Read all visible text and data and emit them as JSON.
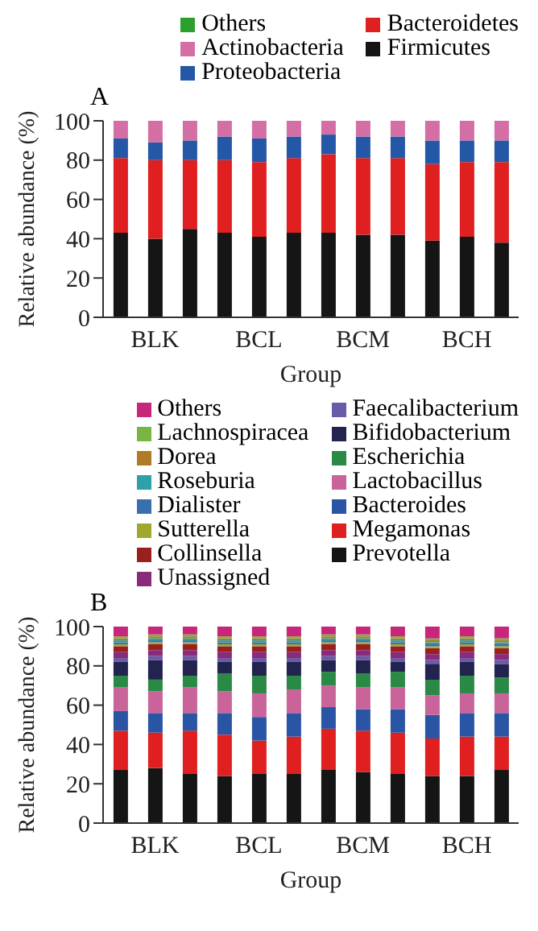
{
  "chart_data": [
    {
      "type": "bar",
      "stacked": true,
      "title": "A",
      "xlabel": "Group",
      "ylabel": "Relative abundance (%)",
      "categories": [
        null,
        "BLK",
        null,
        null,
        "BCL",
        null,
        null,
        "BCM",
        null,
        null,
        "BCH",
        null
      ],
      "ylim": [
        0,
        100
      ],
      "yticks": [
        0,
        20,
        40,
        60,
        80,
        100
      ],
      "legend": "top",
      "series": [
        {
          "name": "Firmicutes",
          "color": "#151515",
          "values": [
            43,
            40,
            45,
            43,
            41,
            43,
            43,
            42,
            42,
            39,
            41,
            38
          ]
        },
        {
          "name": "Bacteroidetes",
          "color": "#e02020",
          "values": [
            38,
            40,
            35,
            37,
            38,
            38,
            40,
            39,
            39,
            39,
            38,
            41
          ]
        },
        {
          "name": "Proteobacteria",
          "color": "#2458a6",
          "values": [
            10,
            9,
            10,
            12,
            12,
            11,
            10,
            11,
            11,
            12,
            11,
            11
          ]
        },
        {
          "name": "Actinobacteria",
          "color": "#d46fa6",
          "values": [
            9,
            11,
            10,
            8,
            9,
            8,
            7,
            8,
            8,
            10,
            10,
            10
          ]
        },
        {
          "name": "Others",
          "color": "#2ca02c",
          "values": [
            0,
            0,
            0,
            0,
            0,
            0,
            0,
            0,
            0,
            0,
            0,
            0
          ]
        }
      ]
    },
    {
      "type": "bar",
      "stacked": true,
      "title": "B",
      "xlabel": "Group",
      "ylabel": "Relative abundance (%)",
      "categories": [
        null,
        "BLK",
        null,
        null,
        "BCL",
        null,
        null,
        "BCM",
        null,
        null,
        "BCH",
        null
      ],
      "ylim": [
        0,
        100
      ],
      "yticks": [
        0,
        20,
        40,
        60,
        80,
        100
      ],
      "legend": "top",
      "series": [
        {
          "name": "Prevotella",
          "color": "#151515",
          "values": [
            27,
            28,
            25,
            24,
            25,
            25,
            27,
            26,
            25,
            24,
            24,
            27
          ]
        },
        {
          "name": "Megamonas",
          "color": "#e02020",
          "values": [
            20,
            18,
            22,
            21,
            17,
            19,
            21,
            21,
            21,
            19,
            20,
            17
          ]
        },
        {
          "name": "Bacteroides",
          "color": "#2a55a5",
          "values": [
            10,
            10,
            9,
            11,
            12,
            12,
            11,
            11,
            12,
            12,
            12,
            12
          ]
        },
        {
          "name": "Lactobacillus",
          "color": "#c8649a",
          "values": [
            12,
            11,
            13,
            11,
            12,
            12,
            11,
            11,
            11,
            10,
            10,
            10
          ]
        },
        {
          "name": "Escherichia",
          "color": "#2a8a45",
          "values": [
            6,
            6,
            6,
            9,
            9,
            7,
            7,
            7,
            8,
            8,
            9,
            8
          ]
        },
        {
          "name": "Bifidobacterium",
          "color": "#23234f",
          "values": [
            7,
            10,
            8,
            6,
            7,
            7,
            6,
            7,
            5,
            8,
            7,
            7
          ]
        },
        {
          "name": "Faecalibacterium",
          "color": "#6a5aa8",
          "values": [
            2,
            2,
            2,
            2,
            2,
            2,
            2,
            2,
            2,
            2,
            2,
            2
          ]
        },
        {
          "name": "Unassigned",
          "color": "#8a2a7a",
          "values": [
            3,
            3,
            3,
            3,
            3,
            3,
            3,
            3,
            3,
            3,
            3,
            3
          ]
        },
        {
          "name": "Collinsella",
          "color": "#9a2020",
          "values": [
            3,
            3,
            3,
            3,
            3,
            3,
            3,
            3,
            3,
            3,
            3,
            3
          ]
        },
        {
          "name": "Sutterella",
          "color": "#a0a830",
          "values": [
            1,
            1,
            1,
            1,
            1,
            1,
            1,
            1,
            1,
            1,
            1,
            1
          ]
        },
        {
          "name": "Dialister",
          "color": "#3a6fae",
          "values": [
            1,
            1,
            1,
            1,
            1,
            1,
            1,
            1,
            1,
            1,
            1,
            1
          ]
        },
        {
          "name": "Roseburia",
          "color": "#2ea0a8",
          "values": [
            1,
            1,
            1,
            1,
            1,
            1,
            1,
            1,
            1,
            1,
            1,
            1
          ]
        },
        {
          "name": "Dorea",
          "color": "#b07a28",
          "values": [
            1,
            1,
            1,
            1,
            1,
            1,
            1,
            1,
            1,
            1,
            1,
            1
          ]
        },
        {
          "name": "Lachnospiracea",
          "color": "#78b543",
          "values": [
            1,
            1,
            1,
            1,
            1,
            1,
            1,
            1,
            1,
            1,
            1,
            1
          ]
        },
        {
          "name": "Others",
          "color": "#c8267a",
          "values": [
            5,
            4,
            4,
            5,
            5,
            5,
            4,
            4,
            5,
            6,
            5,
            6
          ]
        }
      ]
    }
  ]
}
